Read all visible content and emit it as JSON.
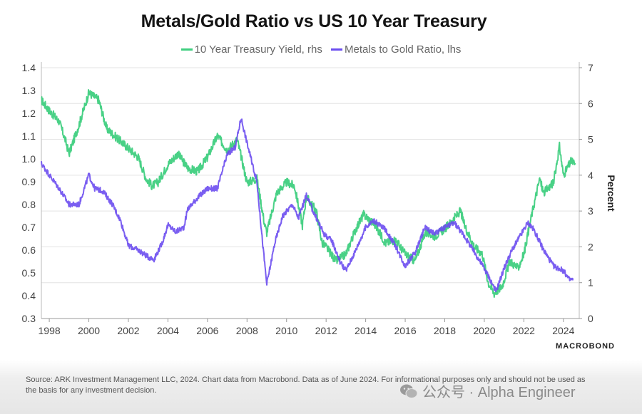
{
  "chart_data": {
    "type": "line",
    "title": "Metals/Gold Ratio vs US 10 Year Treasury",
    "left_axis": {
      "label": "",
      "ylim": [
        0.3,
        1.4
      ],
      "ticks": [
        0.3,
        0.4,
        0.5,
        0.6,
        0.7,
        0.8,
        0.9,
        1.0,
        1.1,
        1.2,
        1.3,
        1.4
      ]
    },
    "right_axis": {
      "label": "Percent",
      "ylim": [
        0,
        7
      ],
      "ticks": [
        0,
        1,
        2,
        3,
        4,
        5,
        6,
        7
      ]
    },
    "x_axis": {
      "label": "",
      "xlim": [
        1997.6,
        2024.8
      ],
      "ticks": [
        1998,
        2000,
        2002,
        2004,
        2006,
        2008,
        2010,
        2012,
        2014,
        2016,
        2018,
        2020,
        2022,
        2024
      ]
    },
    "series": [
      {
        "name": "10 Year Treasury Yield, rhs",
        "axis": "right",
        "color": "#3fcf7f",
        "x": [
          1997.6,
          1998.0,
          1998.5,
          1998.8,
          1999.0,
          1999.5,
          2000.0,
          2000.5,
          2000.9,
          2001.5,
          2001.9,
          2002.5,
          2002.9,
          2003.2,
          2003.5,
          2004.0,
          2004.5,
          2005.0,
          2005.5,
          2006.0,
          2006.5,
          2007.0,
          2007.5,
          2008.0,
          2008.5,
          2008.9,
          2009.0,
          2009.5,
          2010.0,
          2010.4,
          2010.8,
          2011.0,
          2011.5,
          2011.8,
          2012.0,
          2012.5,
          2013.0,
          2013.5,
          2013.9,
          2014.5,
          2015.0,
          2015.5,
          2016.0,
          2016.5,
          2017.0,
          2017.5,
          2018.0,
          2018.8,
          2019.0,
          2019.5,
          2019.9,
          2020.2,
          2020.5,
          2020.9,
          2021.3,
          2021.7,
          2022.0,
          2022.4,
          2022.8,
          2023.0,
          2023.5,
          2023.8,
          2024.0,
          2024.4,
          2024.6
        ],
        "values": [
          6.1,
          5.8,
          5.5,
          5.0,
          4.6,
          5.4,
          6.3,
          6.1,
          5.3,
          5.0,
          4.8,
          4.5,
          3.9,
          3.7,
          3.8,
          4.3,
          4.6,
          4.2,
          4.1,
          4.5,
          5.1,
          4.7,
          5.0,
          3.8,
          3.9,
          2.6,
          2.4,
          3.5,
          3.8,
          3.7,
          2.6,
          3.4,
          3.0,
          2.1,
          2.0,
          1.6,
          1.8,
          2.5,
          2.9,
          2.6,
          2.1,
          2.2,
          1.8,
          1.6,
          2.4,
          2.3,
          2.5,
          3.0,
          2.6,
          2.0,
          1.8,
          1.0,
          0.7,
          0.9,
          1.6,
          1.4,
          1.8,
          2.9,
          3.9,
          3.5,
          3.8,
          4.8,
          4.0,
          4.4,
          4.3
        ]
      },
      {
        "name": "Metals to Gold Ratio, lhs",
        "axis": "left",
        "color": "#6b4df0",
        "x": [
          1997.6,
          1998.0,
          1998.5,
          1999.0,
          1999.5,
          2000.0,
          2000.3,
          2000.7,
          2001.2,
          2001.6,
          2002.0,
          2002.5,
          2003.0,
          2003.3,
          2003.7,
          2004.0,
          2004.4,
          2004.8,
          2005.0,
          2005.5,
          2006.0,
          2006.5,
          2007.0,
          2007.4,
          2007.7,
          2008.0,
          2008.5,
          2008.8,
          2009.0,
          2009.4,
          2009.8,
          2010.3,
          2010.6,
          2011.0,
          2011.4,
          2011.9,
          2012.3,
          2012.7,
          2013.0,
          2013.5,
          2014.0,
          2014.4,
          2015.0,
          2015.5,
          2016.0,
          2016.5,
          2017.0,
          2017.5,
          2018.0,
          2018.5,
          2019.0,
          2019.5,
          2020.0,
          2020.3,
          2020.6,
          2021.0,
          2021.4,
          2021.8,
          2022.2,
          2022.5,
          2023.0,
          2023.5,
          2024.0,
          2024.3,
          2024.5
        ],
        "values": [
          0.98,
          0.93,
          0.87,
          0.8,
          0.8,
          0.93,
          0.87,
          0.86,
          0.8,
          0.73,
          0.62,
          0.6,
          0.57,
          0.56,
          0.63,
          0.71,
          0.68,
          0.7,
          0.78,
          0.83,
          0.87,
          0.87,
          1.02,
          1.05,
          1.18,
          1.07,
          0.9,
          0.62,
          0.45,
          0.63,
          0.75,
          0.8,
          0.74,
          0.84,
          0.76,
          0.67,
          0.64,
          0.55,
          0.51,
          0.6,
          0.7,
          0.73,
          0.69,
          0.62,
          0.53,
          0.59,
          0.7,
          0.67,
          0.7,
          0.72,
          0.66,
          0.59,
          0.52,
          0.47,
          0.42,
          0.52,
          0.6,
          0.66,
          0.72,
          0.69,
          0.6,
          0.53,
          0.51,
          0.47,
          0.47
        ]
      }
    ]
  },
  "legend": [
    {
      "label": "10 Year Treasury Yield, rhs",
      "color": "#3fcf7f"
    },
    {
      "label": "Metals to Gold Ratio, lhs",
      "color": "#6b4df0"
    }
  ],
  "brand": "MACROBOND",
  "source": "Source: ARK Investment Management LLC, 2024. Chart data from Macrobond. Data as of June 2024. For informational purposes only and should not be used as the basis for any investment decision.",
  "watermark": "公众号 · Alpha Engineer"
}
